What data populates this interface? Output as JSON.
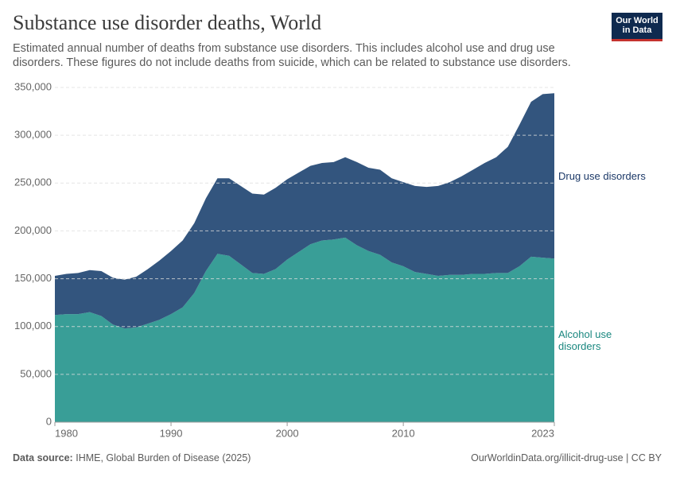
{
  "header": {
    "title": "Substance use disorder deaths, World",
    "subtitle": "Estimated annual number of deaths from substance use disorders. This includes alcohol use and drug use disorders. These figures do not include deaths from suicide, which can be related to substance use disorders.",
    "logo": [
      "Our World",
      "in Data"
    ]
  },
  "chart_data": {
    "type": "stacked-area",
    "x": [
      1980,
      1981,
      1982,
      1983,
      1984,
      1985,
      1986,
      1987,
      1988,
      1989,
      1990,
      1991,
      1992,
      1993,
      1994,
      1995,
      1996,
      1997,
      1998,
      1999,
      2000,
      2001,
      2002,
      2003,
      2004,
      2005,
      2006,
      2007,
      2008,
      2009,
      2010,
      2011,
      2012,
      2013,
      2014,
      2015,
      2016,
      2017,
      2018,
      2019,
      2020,
      2021,
      2022,
      2023
    ],
    "series": [
      {
        "name": "Alcohol use disorders",
        "color": "#399e97",
        "label_color": "#19877f",
        "values": [
          112000,
          113000,
          113000,
          115000,
          111000,
          102000,
          98000,
          99000,
          103000,
          107000,
          113000,
          120000,
          135000,
          158000,
          176000,
          174000,
          165000,
          156000,
          155000,
          160000,
          170000,
          178000,
          186000,
          190000,
          191000,
          193000,
          185000,
          179000,
          175000,
          167000,
          163000,
          157000,
          155000,
          153000,
          154000,
          154000,
          155000,
          155000,
          156000,
          156000,
          163000,
          173000,
          172000,
          171000
        ]
      },
      {
        "name": "Drug use disorders",
        "color": "#33557e",
        "label_color": "#1b3867",
        "values": [
          41000,
          42000,
          43000,
          44000,
          47000,
          49000,
          51000,
          53000,
          57000,
          62000,
          66000,
          70000,
          73000,
          76000,
          79000,
          81000,
          82000,
          83000,
          83000,
          85000,
          84000,
          83000,
          82000,
          81000,
          81000,
          84000,
          87000,
          87000,
          89000,
          88000,
          88000,
          90000,
          91000,
          94000,
          97000,
          103000,
          109000,
          116000,
          121000,
          132000,
          148000,
          162000,
          171000,
          173000
        ]
      }
    ],
    "xlim": [
      1980,
      2023
    ],
    "xticks": [
      1980,
      1990,
      2000,
      2010,
      2023
    ],
    "ylim": [
      0,
      350000
    ],
    "yticks": [
      0,
      {
        "value": 50000,
        "label": "50,000"
      },
      {
        "value": 100000,
        "label": "100,000"
      },
      {
        "value": 150000,
        "label": "150,000"
      },
      {
        "value": 200000,
        "label": "200,000"
      },
      {
        "value": 250000,
        "label": "250,000"
      },
      {
        "value": 300000,
        "label": "300,000"
      },
      {
        "value": 350000,
        "label": "350,000"
      }
    ],
    "grid": true
  },
  "footer": {
    "source_label": "Data source:",
    "source": "IHME, Global Burden of Disease (2025)",
    "url": "OurWorldinData.org/illicit-drug-use | CC BY"
  }
}
